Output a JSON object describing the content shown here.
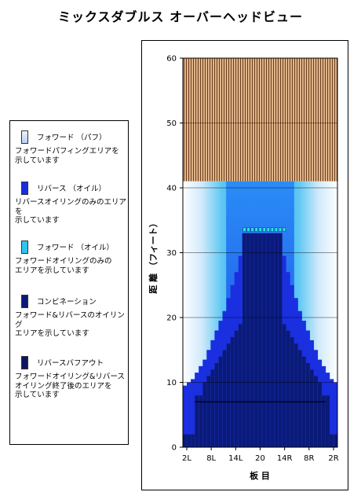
{
  "page_title": "ミックスダブルス オーバーヘッドビュー",
  "legend": [
    {
      "label": "フォワード （パフ）",
      "desc": "フォワードパフィングエリアを\n示しています",
      "color": "#d8e4ff"
    },
    {
      "label": "リバース （オイル）",
      "desc": "リバースオイリングのみのエリアを\n示しています",
      "color": "#1a2fe0"
    },
    {
      "label": "フォワード （オイル）",
      "desc": "フォワードオイリングのみの\nエリアを示しています",
      "color": "#2ec4ee"
    },
    {
      "label": "コンビネーション",
      "desc": "フォワード&リバースのオイリング\nエリアを示しています",
      "color": "#0a1a78"
    },
    {
      "label": "リバースバフアウト",
      "desc": "フォワードオイリング&リバース\nオイリング終了後のエリアを\n示しています",
      "color": "#0d1560"
    }
  ],
  "chart_data": {
    "type": "heatmap",
    "xlabel": "板 目",
    "ylabel": "距 離 （フィート）",
    "x_ticks": [
      "2L",
      "8L",
      "14L",
      "20",
      "14R",
      "8R",
      "2R"
    ],
    "y_ticks": [
      0,
      10,
      20,
      30,
      40,
      50,
      60
    ],
    "ylim": [
      0,
      60
    ],
    "boards": 39,
    "lane_end_ft": 41,
    "grid": "horizontal",
    "board_pattern_top": "brown-stripes",
    "reverse_profile_ft": [
      9.5,
      10,
      10.5,
      11.5,
      12.5,
      13.5,
      15,
      16.5,
      18,
      19.5,
      21,
      23,
      25,
      27,
      29.5,
      33,
      33,
      33,
      33,
      33,
      33,
      33,
      33,
      33,
      33,
      29.5,
      27,
      25,
      23,
      21,
      19.5,
      18,
      16.5,
      15,
      13.5,
      12.5,
      11.5,
      10.5,
      10
    ],
    "combination_profile_ft": [
      2,
      2,
      2,
      8,
      8,
      10,
      11,
      12,
      13,
      14,
      15,
      16,
      17,
      18,
      19,
      33,
      33,
      33,
      33,
      33,
      33,
      33,
      33,
      33,
      33,
      19,
      18,
      17,
      16,
      15,
      14,
      13,
      12,
      11,
      10,
      8,
      8,
      2,
      2
    ],
    "buff_line_ft": 7,
    "forward_oil_marker_ft": 33.5,
    "forward_oil_range_boards": [
      15,
      25
    ]
  }
}
